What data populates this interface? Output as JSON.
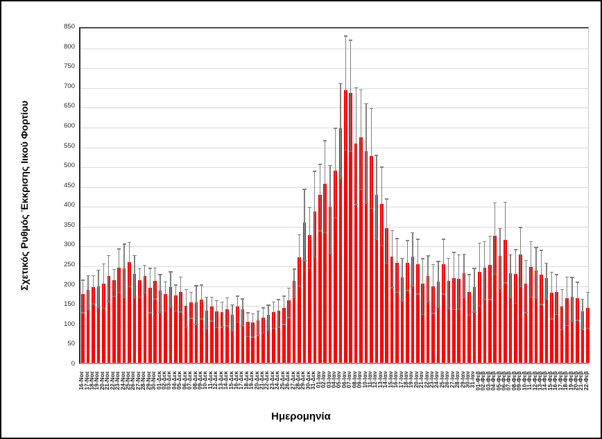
{
  "chart_data": {
    "type": "bar",
    "title": "",
    "xlabel": "Ημερομηνία",
    "ylabel": "Σχετικός Ρυθμός Έκκρισης Ιικού Φορτίου",
    "ylim": [
      0,
      850
    ],
    "y_ticks": [
      0,
      50,
      100,
      150,
      200,
      250,
      300,
      350,
      400,
      450,
      500,
      550,
      600,
      650,
      700,
      750,
      800,
      850
    ],
    "grid": "horizontal",
    "legend": "none",
    "bar_color": "#FF0000",
    "error_bar_color": "#808080",
    "categories": [
      "16-Νοε",
      "17-Νοε",
      "18-Νοε",
      "19-Νοε",
      "20-Νοε",
      "21-Νοε",
      "22-Νοε",
      "23-Νοε",
      "24-Νοε",
      "25-Νοε",
      "26-Νοε",
      "27-Νοε",
      "28-Νοε",
      "29-Νοε",
      "30-Νοε",
      "01-Δεκ",
      "02-Δεκ",
      "03-Δεκ",
      "04-Δεκ",
      "05-Δεκ",
      "06-Δεκ",
      "07-Δεκ",
      "08-Δεκ",
      "09-Δεκ",
      "10-Δεκ",
      "11-Δεκ",
      "12-Δεκ",
      "13-Δεκ",
      "14-Δεκ",
      "15-Δεκ",
      "16-Δεκ",
      "17-Δεκ",
      "18-Δεκ",
      "19-Δεκ",
      "20-Δεκ",
      "21-Δεκ",
      "22-Δεκ",
      "23-Δεκ",
      "24-Δεκ",
      "25-Δεκ",
      "26-Δεκ",
      "27-Δεκ",
      "28-Δεκ",
      "29-Δεκ",
      "30-Δεκ",
      "31-Δεκ",
      "01-Ιαν",
      "02-Ιαν",
      "03-Ιαν",
      "04-Ιαν",
      "05-Ιαν",
      "06-Ιαν",
      "07-Ιαν",
      "08-Ιαν",
      "09-Ιαν",
      "10-Ιαν",
      "11-Ιαν",
      "12-Ιαν",
      "13-Ιαν",
      "14-Ιαν",
      "15-Ιαν",
      "16-Ιαν",
      "17-Ιαν",
      "18-Ιαν",
      "19-Ιαν",
      "20-Ιαν",
      "21-Ιαν",
      "22-Ιαν",
      "23-Ιαν",
      "24-Ιαν",
      "25-Ιαν",
      "26-Ιαν",
      "27-Ιαν",
      "28-Ιαν",
      "29-Ιαν",
      "30-Ιαν",
      "31-Ιαν",
      "01-Φεβ",
      "02-Φεβ",
      "03-Φεβ",
      "04-Φεβ",
      "05-Φεβ",
      "06-Φεβ",
      "07-Φεβ",
      "08-Φεβ",
      "09-Φεβ",
      "10-Φεβ",
      "11-Φεβ",
      "12-Φεβ",
      "13-Φεβ",
      "14-Φεβ",
      "15-Φεβ",
      "16-Φεβ",
      "17-Φεβ",
      "18-Φεβ",
      "19-Φεβ",
      "20-Φεβ",
      "21-Φεβ",
      "22-Φεβ"
    ],
    "values": [
      174,
      184,
      191,
      193,
      200,
      219,
      208,
      239,
      238,
      254,
      224,
      208,
      218,
      189,
      207,
      182,
      174,
      191,
      170,
      179,
      144,
      152,
      152,
      160,
      132,
      142,
      129,
      128,
      135,
      120,
      142,
      134,
      103,
      101,
      106,
      113,
      120,
      127,
      131,
      139,
      158,
      207,
      265,
      354,
      322,
      382,
      423,
      451,
      393,
      485,
      591,
      687,
      680,
      553,
      569,
      534,
      522,
      424,
      401,
      339,
      268,
      252,
      216,
      252,
      268,
      249,
      199,
      218,
      193,
      204,
      249,
      207,
      213,
      211,
      226,
      178,
      190,
      229,
      239,
      246,
      320,
      269,
      310,
      225,
      224,
      273,
      199,
      242,
      233,
      222,
      213,
      176,
      179,
      141,
      162,
      167,
      162,
      129,
      139
    ],
    "error": [
      41,
      43,
      36,
      47,
      56,
      58,
      34,
      55,
      68,
      56,
      53,
      36,
      35,
      56,
      39,
      47,
      37,
      45,
      33,
      44,
      47,
      33,
      49,
      43,
      40,
      30,
      34,
      32,
      35,
      33,
      33,
      34,
      30,
      29,
      31,
      32,
      32,
      33,
      35,
      36,
      37,
      36,
      65,
      90,
      76,
      108,
      84,
      116,
      112,
      113,
      120,
      144,
      140,
      147,
      126,
      126,
      126,
      106,
      99,
      81,
      72,
      68,
      54,
      63,
      67,
      69,
      70,
      58,
      62,
      58,
      69,
      63,
      72,
      68,
      55,
      51,
      55,
      80,
      73,
      80,
      90,
      76,
      102,
      54,
      68,
      75,
      66,
      70,
      64,
      68,
      45,
      59,
      50,
      51,
      61,
      55,
      48,
      38,
      45
    ]
  }
}
